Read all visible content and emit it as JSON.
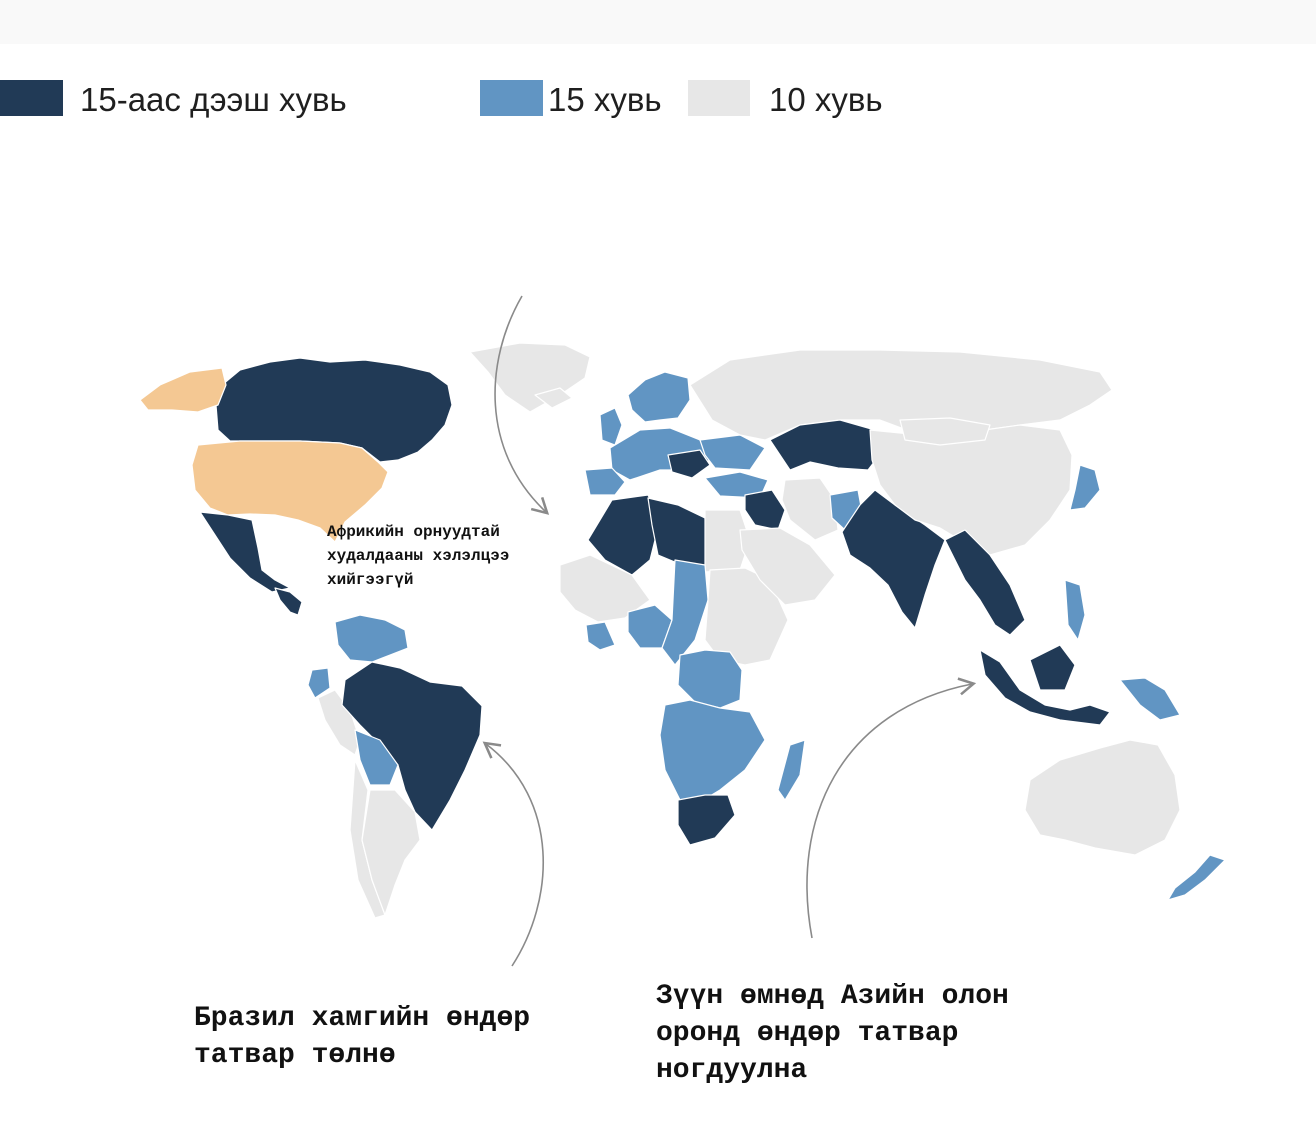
{
  "legend": [
    {
      "label": "15-аас дээш хувь",
      "color": "#213a56"
    },
    {
      "label": "15 хувь",
      "color": "#6195c3"
    },
    {
      "label": "10 хувь",
      "color": "#e7e7e7"
    }
  ],
  "colors": {
    "no_agreement": "#f4c893",
    "arrow": "#8a8a8a",
    "border": "#ffffff"
  },
  "annotations": {
    "africa_note": "Африкийн орнуудтай\nхудалдааны хэлэлцээ\nхийгээгүй",
    "brazil_note": "Бразил хамгийн өндөр\nтатвар төлнө",
    "asia_note": "Зүүн өмнөд Азийн олон\nоронд өндөр татвар\nногдуулна"
  },
  "map_regions": [
    {
      "id": "greenland",
      "category": "10"
    },
    {
      "id": "canada",
      "category": "15+"
    },
    {
      "id": "alaska",
      "category": "none"
    },
    {
      "id": "usa",
      "category": "none"
    },
    {
      "id": "mexico",
      "category": "15+"
    },
    {
      "id": "central-america",
      "category": "15+"
    },
    {
      "id": "venezuela-colombia",
      "category": "15"
    },
    {
      "id": "ecuador",
      "category": "15"
    },
    {
      "id": "peru",
      "category": "10"
    },
    {
      "id": "brazil",
      "category": "15+"
    },
    {
      "id": "bolivia",
      "category": "15"
    },
    {
      "id": "chile",
      "category": "10"
    },
    {
      "id": "argentina",
      "category": "10"
    },
    {
      "id": "iceland",
      "category": "10"
    },
    {
      "id": "scandinavia",
      "category": "15"
    },
    {
      "id": "uk-ireland",
      "category": "15"
    },
    {
      "id": "western-europe",
      "category": "15"
    },
    {
      "id": "iberia",
      "category": "15"
    },
    {
      "id": "balkans",
      "category": "15+"
    },
    {
      "id": "eastern-europe",
      "category": "15"
    },
    {
      "id": "turkey",
      "category": "15"
    },
    {
      "id": "russia",
      "category": "10"
    },
    {
      "id": "kazakhstan",
      "category": "15+"
    },
    {
      "id": "north-africa",
      "category": "15+"
    },
    {
      "id": "libya",
      "category": "15+"
    },
    {
      "id": "egypt-sahel",
      "category": "10"
    },
    {
      "id": "west-africa",
      "category": "10"
    },
    {
      "id": "ivory-coast-ghana",
      "category": "15"
    },
    {
      "id": "nigeria",
      "category": "15"
    },
    {
      "id": "chad-sudan",
      "category": "15"
    },
    {
      "id": "horn-of-africa",
      "category": "10"
    },
    {
      "id": "central-africa",
      "category": "15"
    },
    {
      "id": "southern-africa",
      "category": "15"
    },
    {
      "id": "south-africa",
      "category": "15+"
    },
    {
      "id": "madagascar",
      "category": "15"
    },
    {
      "id": "middle-east-iraq-syria",
      "category": "15+"
    },
    {
      "id": "arabia",
      "category": "10"
    },
    {
      "id": "iran",
      "category": "10"
    },
    {
      "id": "afghanistan",
      "category": "15"
    },
    {
      "id": "pakistan-india",
      "category": "15+"
    },
    {
      "id": "china",
      "category": "10"
    },
    {
      "id": "mongolia",
      "category": "10"
    },
    {
      "id": "southeast-asia",
      "category": "15+"
    },
    {
      "id": "malaysia-indonesia",
      "category": "15+"
    },
    {
      "id": "philippines",
      "category": "15"
    },
    {
      "id": "japan",
      "category": "15"
    },
    {
      "id": "papua-new-guinea",
      "category": "15"
    },
    {
      "id": "australia",
      "category": "10"
    },
    {
      "id": "new-zealand",
      "category": "15"
    }
  ]
}
